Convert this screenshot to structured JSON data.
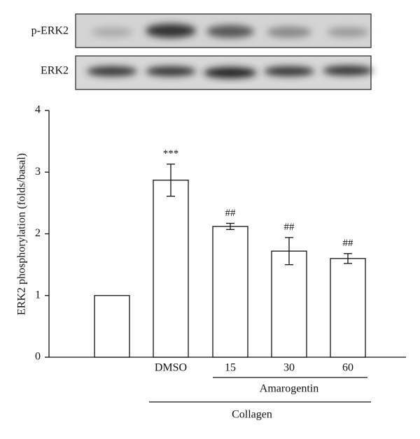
{
  "blot_labels": [
    "p-ERK2",
    "ERK2"
  ],
  "chart_data": {
    "type": "bar",
    "y_label": "ERK2 phosphorylation (folds/basal)",
    "categories": [
      null,
      "DMSO",
      "15",
      "30",
      "60"
    ],
    "values": [
      1,
      2.87,
      2.12,
      1.72,
      1.6
    ],
    "errors": [
      null,
      0.26,
      0.05,
      0.22,
      0.08
    ],
    "annotations": [
      null,
      "***",
      "##",
      "##",
      "##"
    ],
    "group_labels": [
      "Amarogentin",
      "Collagen"
    ],
    "color": "#ffffff",
    "ylim": [
      0,
      4
    ],
    "yticks": [
      0,
      1,
      2,
      3,
      4
    ],
    "grid": false
  }
}
